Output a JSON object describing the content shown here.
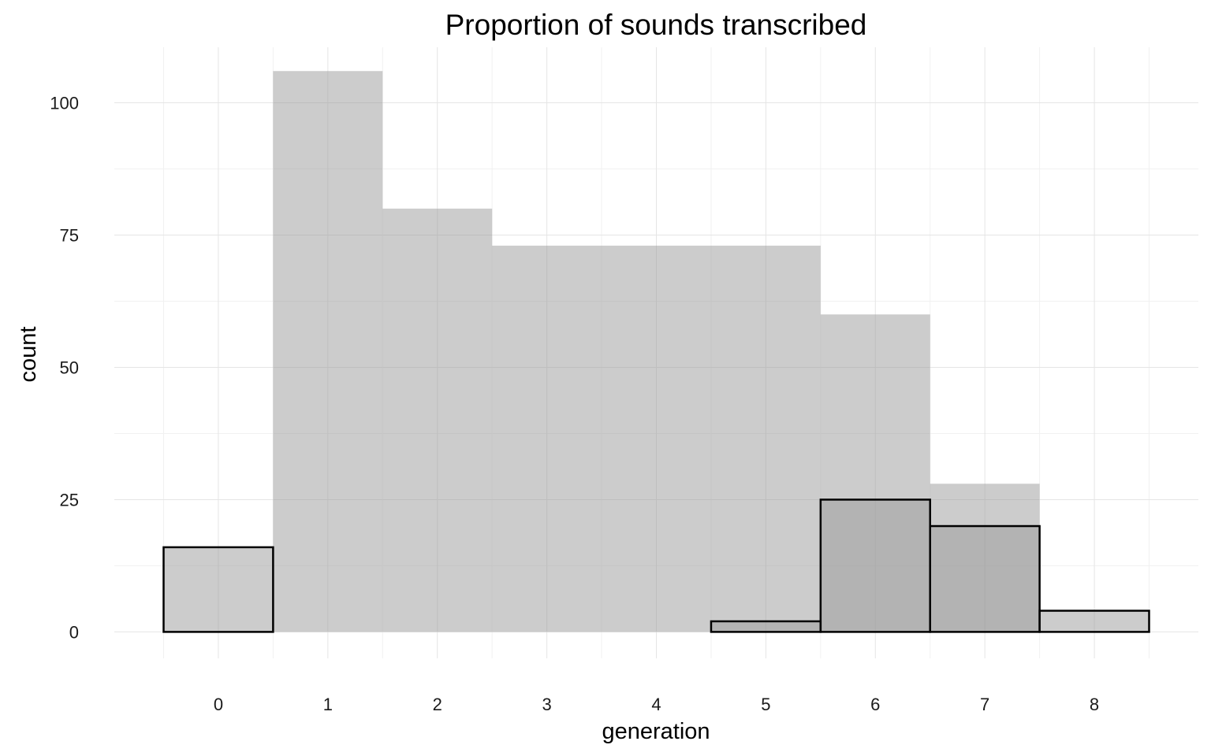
{
  "chart_data": {
    "type": "bar",
    "title": "Proportion of sounds transcribed",
    "xlabel": "generation",
    "ylabel": "count",
    "categories": [
      "0",
      "1",
      "2",
      "3",
      "4",
      "5",
      "6",
      "7",
      "8"
    ],
    "xlim": [
      -0.95,
      8.95
    ],
    "ylim": [
      -5.0,
      110.5
    ],
    "x_ticks": [
      0,
      1,
      2,
      3,
      4,
      5,
      6,
      7,
      8
    ],
    "y_ticks": [
      0,
      25,
      50,
      75,
      100
    ],
    "y_minor_ticks": [
      12.5,
      37.5,
      62.5,
      87.5
    ],
    "grid": true,
    "legend": "none",
    "series": [
      {
        "style": "filled-gray",
        "fill": "#cccccc",
        "values": [
          0,
          106,
          80,
          73,
          73,
          73,
          60,
          28,
          0
        ]
      },
      {
        "style": "outlined",
        "fill": "#cccccc",
        "stroke": "#000000",
        "values": [
          16,
          0,
          0,
          0,
          0,
          2,
          25,
          20,
          4
        ]
      }
    ]
  }
}
